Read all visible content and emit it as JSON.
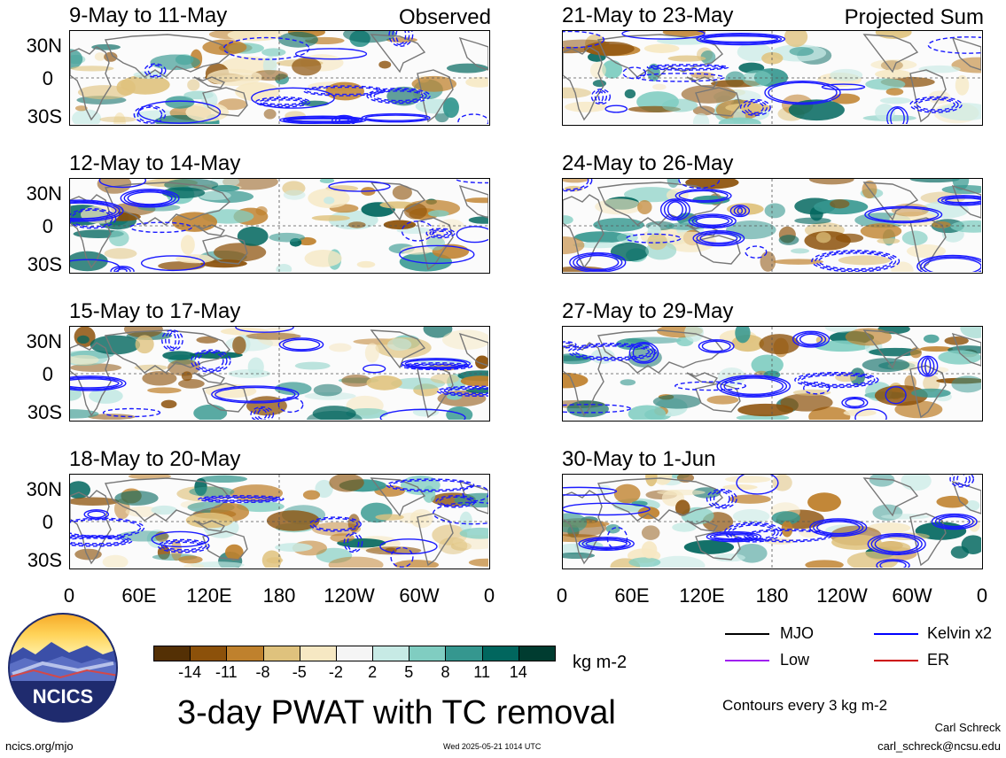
{
  "panels_left": [
    {
      "title": "9-May to 11-May",
      "tag": "Observed"
    },
    {
      "title": "12-May to 14-May",
      "tag": ""
    },
    {
      "title": "15-May to 17-May",
      "tag": ""
    },
    {
      "title": "18-May to 20-May",
      "tag": ""
    }
  ],
  "panels_right": [
    {
      "title": "21-May to 23-May",
      "tag": "Projected Sum"
    },
    {
      "title": "24-May to 26-May",
      "tag": ""
    },
    {
      "title": "27-May to 29-May",
      "tag": ""
    },
    {
      "title": "30-May to 1-Jun",
      "tag": ""
    }
  ],
  "lat_labels": [
    "30N",
    "0",
    "30S"
  ],
  "lon_labels": [
    "0",
    "60E",
    "120E",
    "180",
    "120W",
    "60W",
    "0"
  ],
  "colorbar": {
    "ticks": [
      "-14",
      "-11",
      "-8",
      "-5",
      "-2",
      "2",
      "5",
      "8",
      "11",
      "14"
    ],
    "colors": [
      "#543005",
      "#8c510a",
      "#bf812d",
      "#dfc27d",
      "#f6e8c3",
      "#f5f5f5",
      "#c7eae5",
      "#80cdc1",
      "#35978f",
      "#01665e",
      "#003c30"
    ],
    "unit": "kg m-2"
  },
  "legend": {
    "items": [
      {
        "label": "MJO",
        "color": "#000000"
      },
      {
        "label": "Kelvin x2",
        "color": "#0000ff"
      },
      {
        "label": "Low",
        "color": "#a020f0"
      },
      {
        "label": "ER",
        "color": "#cc0000"
      }
    ],
    "contours": "Contours every 3 kg m-2"
  },
  "main_title": "3-day PWAT with TC removal",
  "logo_text": "NCICS",
  "footer": {
    "url": "ncics.org/mjo",
    "timestamp": "Wed 2025-05-21 1014 UTC",
    "author": "Carl Schreck",
    "email": "carl_schreck@ncsu.edu"
  }
}
